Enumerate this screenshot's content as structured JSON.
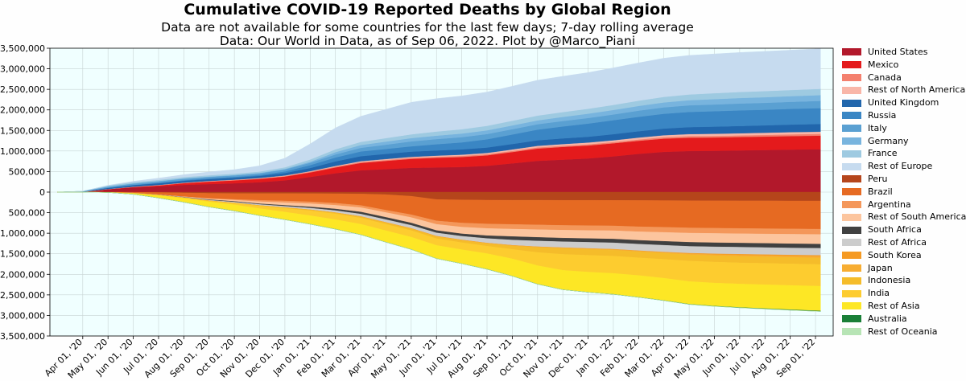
{
  "chart_data": {
    "type": "area",
    "stacked": "diverging",
    "title": "Cumulative COVID-19 Reported Deaths by Global Region",
    "subtitle_lines": [
      "Data are not available for some countries for the last few days;  7-day rolling average",
      "Data: Our World in Data, as of Sep 06, 2022. Plot by @Marco_Piani"
    ],
    "xlabel": "",
    "ylabel": "",
    "ylim": [
      -3500000,
      3500000
    ],
    "grid": true,
    "legend_position": "right",
    "x_tick_labels": [
      "Apr 01, '20",
      "May 01, '20",
      "Jun 01, '20",
      "Jul 01, '20",
      "Aug 01, '20",
      "Sep 01, '20",
      "Oct 01, '20",
      "Nov 01, '20",
      "Dec 01, '20",
      "Jan 01, '21",
      "Feb 01, '21",
      "Mar 01, '21",
      "Apr 01, '21",
      "May 01, '21",
      "Jun 01, '21",
      "Jul 01, '21",
      "Aug 01, '21",
      "Sep 01, '21",
      "Oct 01, '21",
      "Nov 01, '21",
      "Dec 01, '21",
      "Jan 01, '22",
      "Feb 01, '22",
      "Mar 01, '22",
      "Apr 01, '22",
      "May 01, '22",
      "Jun 01, '22",
      "Jul 01, '22",
      "Aug 01, '22",
      "Sep 01, '22"
    ],
    "y_tick_labels": [
      "3,500,000",
      "3,000,000",
      "2,500,000",
      "2,000,000",
      "1,500,000",
      "1,000,000",
      "500,000",
      "0",
      "500,000",
      "1,000,000",
      "1,500,000",
      "2,000,000",
      "2,500,000",
      "3,000,000",
      "3,500,000"
    ],
    "y_tick_values": [
      3500000,
      3000000,
      2500000,
      2000000,
      1500000,
      1000000,
      500000,
      0,
      -500000,
      -1000000,
      -1500000,
      -2000000,
      -2500000,
      -3000000,
      -3500000
    ],
    "x_months": [
      -1,
      0,
      1,
      2,
      3,
      4,
      5,
      6,
      7,
      8,
      9,
      10,
      11,
      12,
      13,
      14,
      15,
      16,
      17,
      18,
      19,
      20,
      21,
      22,
      23,
      24,
      25,
      26,
      27,
      28,
      29.2
    ],
    "series": [
      {
        "name": "United States",
        "color": "#b2182b",
        "side": "upper",
        "values": [
          0,
          8,
          70,
          113,
          138,
          175,
          195,
          215,
          240,
          285,
          370,
          460,
          530,
          560,
          590,
          600,
          610,
          640,
          700,
          760,
          790,
          820,
          870,
          930,
          980,
          1000,
          1005,
          1015,
          1025,
          1035,
          1045
        ]
      },
      {
        "name": "Mexico",
        "color": "#e41a1c",
        "side": "upper",
        "values": [
          0,
          0,
          2,
          10,
          25,
          42,
          60,
          70,
          82,
          95,
          110,
          140,
          180,
          200,
          220,
          235,
          245,
          255,
          275,
          300,
          310,
          315,
          318,
          320,
          322,
          324,
          325,
          326,
          327,
          328,
          329
        ]
      },
      {
        "name": "Canada",
        "color": "#f4806e",
        "side": "upper",
        "values": [
          0,
          0,
          3,
          6,
          8,
          9,
          9,
          10,
          11,
          12,
          16,
          20,
          22,
          23,
          24,
          25,
          26,
          27,
          28,
          28,
          29,
          29,
          30,
          31,
          35,
          38,
          39,
          40,
          41,
          42,
          43
        ]
      },
      {
        "name": "Rest of North America",
        "color": "#f9b6a8",
        "side": "upper",
        "values": [
          0,
          0,
          1,
          2,
          3,
          5,
          7,
          9,
          11,
          13,
          15,
          18,
          20,
          22,
          24,
          27,
          30,
          33,
          36,
          38,
          40,
          42,
          44,
          46,
          48,
          49,
          50,
          51,
          52,
          53,
          54
        ]
      },
      {
        "name": "United Kingdom",
        "color": "#2166ac",
        "side": "upper",
        "values": [
          0,
          3,
          28,
          40,
          43,
          45,
          46,
          47,
          50,
          60,
          76,
          110,
          122,
          126,
          127,
          128,
          129,
          131,
          133,
          136,
          139,
          142,
          148,
          155,
          162,
          170,
          175,
          178,
          180,
          184,
          187
        ]
      },
      {
        "name": "Russia",
        "color": "#3a86c4",
        "side": "upper",
        "values": [
          0,
          0,
          1,
          4,
          10,
          15,
          19,
          20,
          25,
          40,
          70,
          95,
          115,
          120,
          130,
          150,
          170,
          200,
          230,
          260,
          290,
          320,
          340,
          350,
          360,
          370,
          375,
          378,
          380,
          383,
          385
        ]
      },
      {
        "name": "Italy",
        "color": "#5aa0d2",
        "side": "upper",
        "values": [
          0,
          10,
          28,
          33,
          35,
          35,
          35,
          36,
          38,
          46,
          57,
          74,
          88,
          103,
          118,
          125,
          127,
          128,
          129,
          130,
          132,
          135,
          138,
          150,
          156,
          160,
          163,
          166,
          168,
          170,
          176
        ]
      },
      {
        "name": "Germany",
        "color": "#78b4de",
        "side": "upper",
        "values": [
          0,
          0,
          5,
          8,
          9,
          9,
          9,
          9,
          10,
          14,
          25,
          55,
          68,
          75,
          80,
          85,
          88,
          90,
          92,
          95,
          100,
          105,
          110,
          115,
          120,
          125,
          130,
          135,
          137,
          139,
          142
        ]
      },
      {
        "name": "France",
        "color": "#9ecae1",
        "side": "upper",
        "values": [
          0,
          3,
          23,
          28,
          29,
          30,
          30,
          31,
          33,
          40,
          55,
          70,
          78,
          85,
          92,
          100,
          105,
          110,
          113,
          115,
          117,
          120,
          124,
          128,
          135,
          140,
          145,
          147,
          148,
          150,
          152
        ]
      },
      {
        "name": "Rest of Europe",
        "color": "#c6dbef",
        "side": "upper",
        "values": [
          0,
          0,
          5,
          20,
          40,
          60,
          80,
          100,
          140,
          220,
          380,
          520,
          620,
          700,
          780,
          800,
          810,
          820,
          840,
          860,
          870,
          880,
          900,
          920,
          940,
          950,
          955,
          960,
          965,
          970,
          975
        ]
      },
      {
        "name": "Peru",
        "color": "#b5451b",
        "side": "lower",
        "values": [
          0,
          0,
          1,
          4,
          9,
          20,
          30,
          33,
          35,
          36,
          37,
          40,
          45,
          60,
          100,
          180,
          190,
          195,
          197,
          198,
          199,
          200,
          201,
          203,
          205,
          210,
          212,
          213,
          214,
          215,
          216
        ]
      },
      {
        "name": "Brazil",
        "color": "#e66a22",
        "side": "lower",
        "values": [
          0,
          0,
          4,
          20,
          55,
          90,
          125,
          145,
          165,
          180,
          200,
          230,
          280,
          380,
          450,
          520,
          560,
          580,
          590,
          600,
          610,
          615,
          620,
          640,
          650,
          660,
          665,
          670,
          675,
          680,
          685
        ]
      },
      {
        "name": "Argentina",
        "color": "#f4975a",
        "side": "lower",
        "values": [
          0,
          0,
          0,
          0,
          1,
          3,
          8,
          17,
          33,
          40,
          45,
          50,
          53,
          56,
          68,
          85,
          100,
          108,
          112,
          115,
          116,
          117,
          118,
          120,
          124,
          127,
          128,
          129,
          129,
          130,
          130
        ]
      },
      {
        "name": "Rest of South America",
        "color": "#fcc59e",
        "side": "lower",
        "values": [
          0,
          0,
          0,
          1,
          3,
          9,
          20,
          32,
          50,
          67,
          78,
          90,
          104,
          118,
          133,
          150,
          165,
          176,
          183,
          188,
          193,
          198,
          203,
          210,
          218,
          223,
          226,
          228,
          230,
          232,
          234
        ]
      },
      {
        "name": "South Africa",
        "color": "#404040",
        "side": "lower",
        "values": [
          0,
          0,
          0,
          0,
          1,
          5,
          12,
          16,
          19,
          22,
          30,
          40,
          51,
          54,
          56,
          57,
          59,
          70,
          83,
          88,
          89,
          90,
          91,
          93,
          96,
          99,
          100,
          100,
          101,
          101,
          102
        ]
      },
      {
        "name": "Rest of Africa",
        "color": "#cccccc",
        "side": "lower",
        "values": [
          0,
          0,
          1,
          3,
          5,
          10,
          15,
          20,
          25,
          30,
          40,
          50,
          60,
          70,
          75,
          80,
          90,
          110,
          130,
          140,
          145,
          150,
          155,
          160,
          165,
          168,
          170,
          171,
          172,
          173,
          174
        ]
      },
      {
        "name": "South Korea",
        "color": "#f59a23",
        "side": "lower",
        "values": [
          0,
          0,
          0,
          0,
          0,
          0,
          0,
          0,
          0,
          1,
          1,
          1,
          2,
          2,
          2,
          2,
          2,
          2,
          2,
          3,
          3,
          5,
          6,
          7,
          9,
          12,
          18,
          23,
          24,
          25,
          26
        ]
      },
      {
        "name": "Japan",
        "color": "#f7ad32",
        "side": "lower",
        "values": [
          0,
          0,
          1,
          1,
          1,
          1,
          1,
          2,
          2,
          3,
          4,
          6,
          8,
          9,
          10,
          13,
          14,
          15,
          16,
          17,
          18,
          18,
          18,
          19,
          20,
          24,
          28,
          30,
          31,
          33,
          37
        ]
      },
      {
        "name": "Indonesia",
        "color": "#f5bc2a",
        "side": "lower",
        "values": [
          0,
          0,
          1,
          2,
          3,
          4,
          6,
          9,
          12,
          15,
          18,
          23,
          28,
          34,
          40,
          45,
          50,
          60,
          80,
          120,
          140,
          143,
          144,
          145,
          148,
          152,
          155,
          156,
          157,
          157,
          158
        ]
      },
      {
        "name": "India",
        "color": "#fdcc2f",
        "side": "lower",
        "values": [
          0,
          0,
          0,
          2,
          5,
          10,
          20,
          35,
          60,
          90,
          120,
          140,
          150,
          155,
          160,
          165,
          170,
          180,
          230,
          320,
          390,
          410,
          420,
          430,
          460,
          500,
          510,
          515,
          520,
          525,
          528
        ]
      },
      {
        "name": "Rest of Asia",
        "color": "#fde725",
        "side": "lower",
        "values": [
          0,
          0,
          0,
          20,
          60,
          95,
          124,
          149,
          169,
          186,
          207,
          230,
          255,
          280,
          300,
          320,
          340,
          380,
          420,
          450,
          470,
          490,
          510,
          530,
          540,
          550,
          560,
          570,
          580,
          590,
          600
        ]
      },
      {
        "name": "Australia",
        "color": "#1a7f37",
        "side": "lower",
        "values": [
          0,
          0,
          0,
          0,
          0,
          0,
          0,
          1,
          1,
          1,
          1,
          1,
          1,
          1,
          1,
          1,
          1,
          1,
          1,
          1,
          1,
          1,
          2,
          3,
          4,
          6,
          7,
          8,
          10,
          11,
          13
        ]
      },
      {
        "name": "Rest of Oceania",
        "color": "#b7e4b5",
        "side": "lower",
        "values": [
          0,
          0,
          0,
          0,
          0,
          0,
          0,
          0,
          0,
          0,
          0,
          0,
          0,
          0,
          0,
          0,
          0,
          0,
          0,
          0,
          0,
          0,
          0,
          0,
          0,
          0,
          1,
          1,
          1,
          1,
          1
        ]
      }
    ],
    "value_units_note": "values in thousands of deaths"
  }
}
